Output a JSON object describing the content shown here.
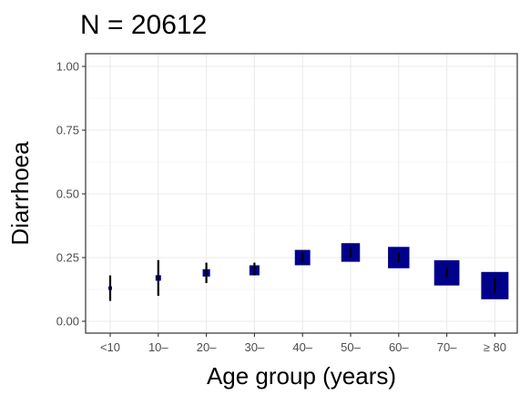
{
  "chart_data": {
    "type": "scatter",
    "title": "N = 20612",
    "xlabel": "Age group (years)",
    "ylabel": "Diarrhoea",
    "categories": [
      "<10",
      "10–",
      "20–",
      "30–",
      "40–",
      "50–",
      "60–",
      "70–",
      "≥ 80"
    ],
    "values": [
      0.13,
      0.17,
      0.19,
      0.2,
      0.25,
      0.27,
      0.25,
      0.19,
      0.14
    ],
    "ci_lower": [
      0.08,
      0.1,
      0.15,
      0.18,
      0.23,
      0.25,
      0.23,
      0.17,
      0.11
    ],
    "ci_upper": [
      0.18,
      0.24,
      0.23,
      0.23,
      0.27,
      0.29,
      0.27,
      0.21,
      0.17
    ],
    "relative_sample_size": [
      0.01,
      0.03,
      0.06,
      0.12,
      0.3,
      0.45,
      0.6,
      0.85,
      1.0
    ],
    "ylim": [
      0,
      1
    ],
    "yticks": [
      0.0,
      0.25,
      0.5,
      0.75,
      1.0
    ],
    "ytick_labels": [
      "0.00",
      "0.25",
      "0.50",
      "0.75",
      "1.00"
    ],
    "grid": true,
    "marker_color": "#00008b",
    "errorbar_color": "#000000"
  }
}
